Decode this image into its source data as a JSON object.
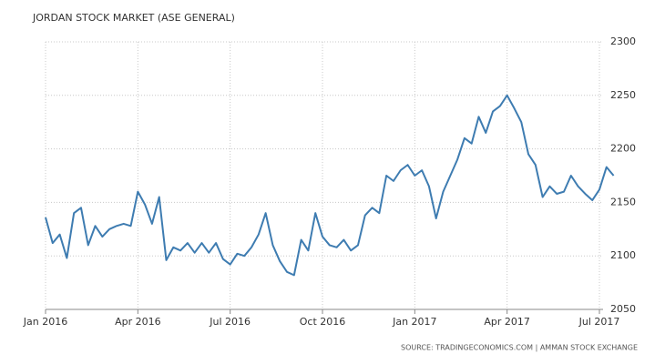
{
  "chart_data": {
    "type": "line",
    "title": "JORDAN STOCK MARKET (ASE GENERAL)",
    "source": "SOURCE: TRADINGECONOMICS.COM | AMMAN STOCK EXCHANGE",
    "categories": [
      "Jan 2016",
      null,
      null,
      null,
      null,
      null,
      null,
      null,
      null,
      null,
      null,
      null,
      null,
      "Apr 2016",
      null,
      null,
      null,
      null,
      null,
      null,
      null,
      null,
      null,
      null,
      null,
      null,
      "Jul 2016",
      null,
      null,
      null,
      null,
      null,
      null,
      null,
      null,
      null,
      null,
      null,
      null,
      "Oct 2016",
      null,
      null,
      null,
      null,
      null,
      null,
      null,
      null,
      null,
      null,
      null,
      null,
      "Jan 2017",
      null,
      null,
      null,
      null,
      null,
      null,
      null,
      null,
      null,
      null,
      null,
      null,
      "Apr 2017",
      null,
      null,
      null,
      null,
      null,
      null,
      null,
      null,
      null,
      null,
      null,
      null,
      "Jul 2017",
      null,
      null
    ],
    "values": [
      2136,
      2112,
      2120,
      2098,
      2140,
      2145,
      2110,
      2128,
      2118,
      2125,
      2128,
      2130,
      2128,
      2160,
      2148,
      2130,
      2155,
      2096,
      2108,
      2105,
      2112,
      2103,
      2112,
      2103,
      2112,
      2097,
      2092,
      2102,
      2100,
      2108,
      2120,
      2140,
      2110,
      2095,
      2085,
      2082,
      2115,
      2105,
      2140,
      2118,
      2110,
      2108,
      2115,
      2105,
      2110,
      2138,
      2145,
      2140,
      2175,
      2170,
      2180,
      2185,
      2175,
      2180,
      2165,
      2135,
      2160,
      2175,
      2190,
      2210,
      2205,
      2230,
      2215,
      2235,
      2240,
      2250,
      2238,
      2225,
      2195,
      2185,
      2155,
      2165,
      2158,
      2160,
      2175,
      2165,
      2158,
      2152,
      2162,
      2183,
      2175
    ],
    "color": "#3e7cb1",
    "ylim": [
      2050,
      2300
    ],
    "yticks": [
      2050,
      2100,
      2150,
      2200,
      2250,
      2300
    ],
    "grid": true
  }
}
